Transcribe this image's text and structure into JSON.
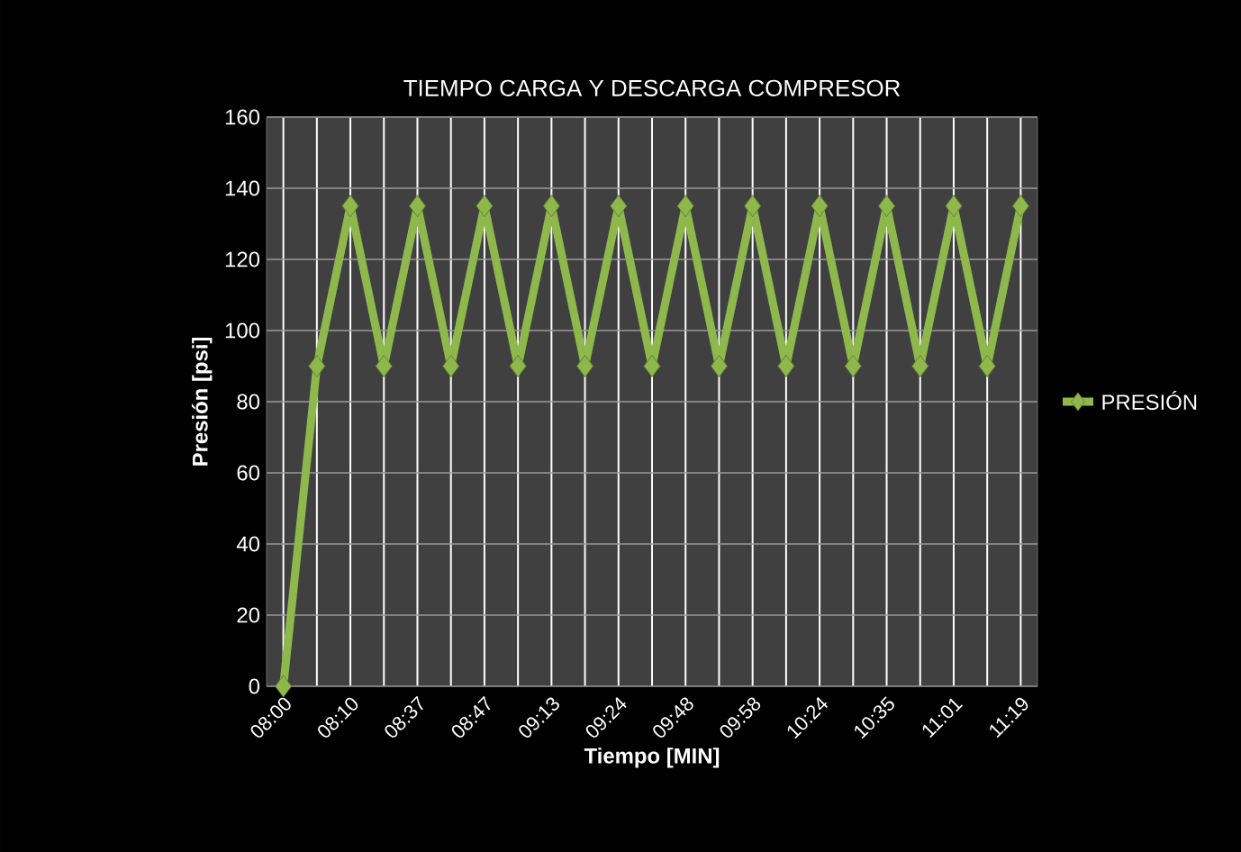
{
  "chart_data": {
    "type": "line",
    "title": "TIEMPO CARGA Y DESCARGA COMPRESOR",
    "xlabel": "Tiempo [MIN]",
    "ylabel": "Presión [psi]",
    "categories": [
      "08:00",
      null,
      "08:10",
      null,
      "08:37",
      null,
      "08:47",
      null,
      "09:13",
      null,
      "09:24",
      null,
      "09:48",
      null,
      "09:58",
      null,
      "10:24",
      null,
      "10:35",
      null,
      "11:01",
      null,
      "11:19"
    ],
    "series": [
      {
        "name": "PRESIÓN",
        "color": "#8fb84c",
        "values": [
          0,
          90,
          135,
          90,
          135,
          90,
          135,
          90,
          135,
          90,
          135,
          90,
          135,
          90,
          135,
          90,
          135,
          90,
          135,
          90,
          135,
          90,
          135
        ]
      }
    ],
    "ylim": [
      0,
      160
    ],
    "yticks": [
      0,
      20,
      40,
      60,
      80,
      100,
      120,
      140,
      160
    ],
    "grid": true,
    "legend": "right",
    "marker": "diamond",
    "line_style": "solid"
  }
}
